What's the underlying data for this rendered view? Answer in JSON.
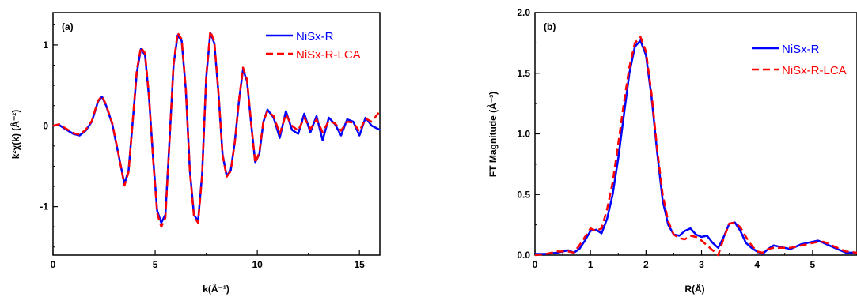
{
  "chart_data": [
    {
      "panel": "(a)",
      "type": "line",
      "xlabel": "k(Å⁻¹)",
      "ylabel": "k²χ(k) (Å⁻²)",
      "xlim": [
        0,
        16
      ],
      "ylim": [
        -1.6,
        1.4
      ],
      "xticks": [
        "0",
        "5",
        "10",
        "15"
      ],
      "yticks": [
        "-1",
        "0",
        "1"
      ],
      "legend_position": "top-right",
      "series": [
        {
          "name": "NiSx-R",
          "color": "#0000ff",
          "style": "solid",
          "x": [
            0,
            0.3,
            0.6,
            1.0,
            1.3,
            1.6,
            1.9,
            2.2,
            2.4,
            2.6,
            2.9,
            3.2,
            3.5,
            3.7,
            3.9,
            4.1,
            4.3,
            4.5,
            4.7,
            4.9,
            5.1,
            5.3,
            5.5,
            5.7,
            5.9,
            6.1,
            6.3,
            6.5,
            6.7,
            6.9,
            7.1,
            7.3,
            7.5,
            7.7,
            7.9,
            8.1,
            8.3,
            8.5,
            8.7,
            8.9,
            9.1,
            9.3,
            9.5,
            9.7,
            9.9,
            10.1,
            10.3,
            10.5,
            10.8,
            11.1,
            11.4,
            11.7,
            12.0,
            12.3,
            12.6,
            12.9,
            13.2,
            13.5,
            13.8,
            14.1,
            14.4,
            14.7,
            15.0,
            15.3,
            15.6,
            16.0
          ],
          "y": [
            0.0,
            0.01,
            -0.04,
            -0.1,
            -0.12,
            -0.06,
            0.05,
            0.3,
            0.36,
            0.25,
            0.02,
            -0.35,
            -0.72,
            -0.55,
            0.05,
            0.65,
            0.95,
            0.88,
            0.35,
            -0.4,
            -1.05,
            -1.2,
            -1.1,
            -0.2,
            0.75,
            1.12,
            1.05,
            0.45,
            -0.55,
            -1.1,
            -1.18,
            -0.6,
            0.6,
            1.15,
            1.02,
            0.4,
            -0.35,
            -0.62,
            -0.55,
            -0.2,
            0.3,
            0.7,
            0.55,
            0.02,
            -0.45,
            -0.35,
            0.05,
            0.2,
            0.1,
            -0.15,
            0.18,
            -0.05,
            -0.1,
            0.15,
            -0.08,
            0.12,
            -0.18,
            0.1,
            0.02,
            -0.12,
            0.08,
            0.05,
            -0.12,
            0.1,
            0.0,
            -0.05
          ]
        },
        {
          "name": "NiSx-R-LCA",
          "color": "#ff0000",
          "style": "dashed",
          "x": [
            0,
            0.3,
            0.6,
            1.0,
            1.3,
            1.6,
            1.9,
            2.2,
            2.4,
            2.6,
            2.9,
            3.2,
            3.5,
            3.7,
            3.9,
            4.1,
            4.3,
            4.5,
            4.7,
            4.9,
            5.1,
            5.3,
            5.5,
            5.7,
            5.9,
            6.1,
            6.3,
            6.5,
            6.7,
            6.9,
            7.1,
            7.3,
            7.5,
            7.7,
            7.9,
            8.1,
            8.3,
            8.5,
            8.7,
            8.9,
            9.1,
            9.3,
            9.5,
            9.7,
            9.9,
            10.1,
            10.3,
            10.5,
            10.8,
            11.1,
            11.4,
            11.7,
            12.0,
            12.3,
            12.6,
            12.9,
            13.2,
            13.5,
            13.8,
            14.1,
            14.4,
            14.7,
            15.0,
            15.3,
            15.6,
            16.0
          ],
          "y": [
            0.0,
            0.02,
            -0.03,
            -0.09,
            -0.11,
            -0.05,
            0.06,
            0.31,
            0.37,
            0.26,
            0.03,
            -0.34,
            -0.74,
            -0.57,
            0.06,
            0.68,
            0.97,
            0.9,
            0.37,
            -0.42,
            -1.08,
            -1.25,
            -1.14,
            -0.22,
            0.77,
            1.15,
            1.07,
            0.46,
            -0.56,
            -1.12,
            -1.2,
            -0.62,
            0.62,
            1.17,
            1.04,
            0.41,
            -0.36,
            -0.63,
            -0.56,
            -0.21,
            0.31,
            0.72,
            0.57,
            0.03,
            -0.46,
            -0.33,
            0.06,
            0.18,
            0.12,
            -0.1,
            0.14,
            0.0,
            -0.06,
            0.1,
            -0.04,
            0.08,
            -0.08,
            0.06,
            0.03,
            -0.06,
            0.05,
            0.04,
            -0.07,
            0.09,
            0.05,
            0.18
          ]
        }
      ]
    },
    {
      "panel": "(b)",
      "type": "line",
      "xlabel": "R(Å)",
      "ylabel": "FT Magnitude (Å⁻³)",
      "xlim": [
        0,
        5.8
      ],
      "ylim": [
        0,
        2.0
      ],
      "xticks": [
        "0",
        "1",
        "2",
        "3",
        "4",
        "5"
      ],
      "yticks": [
        "0.0",
        "0.5",
        "1.0",
        "1.5",
        "2.0"
      ],
      "legend_position": "top-right",
      "series": [
        {
          "name": "NiSx-R",
          "color": "#0000ff",
          "style": "solid",
          "x": [
            0,
            0.2,
            0.4,
            0.6,
            0.7,
            0.8,
            0.9,
            1.0,
            1.1,
            1.2,
            1.3,
            1.4,
            1.5,
            1.6,
            1.7,
            1.8,
            1.9,
            2.0,
            2.1,
            2.2,
            2.3,
            2.4,
            2.5,
            2.6,
            2.7,
            2.8,
            2.9,
            3.0,
            3.1,
            3.2,
            3.3,
            3.4,
            3.5,
            3.6,
            3.7,
            3.8,
            3.9,
            4.0,
            4.1,
            4.2,
            4.3,
            4.4,
            4.6,
            4.8,
            5.0,
            5.1,
            5.2,
            5.4,
            5.6,
            5.8
          ],
          "y": [
            0.01,
            0.01,
            0.02,
            0.04,
            0.02,
            0.05,
            0.12,
            0.2,
            0.21,
            0.18,
            0.3,
            0.5,
            0.8,
            1.15,
            1.5,
            1.72,
            1.77,
            1.65,
            1.3,
            0.85,
            0.45,
            0.25,
            0.17,
            0.16,
            0.2,
            0.22,
            0.17,
            0.15,
            0.16,
            0.1,
            0.06,
            0.15,
            0.26,
            0.27,
            0.2,
            0.1,
            0.06,
            0.03,
            0.01,
            0.05,
            0.08,
            0.07,
            0.05,
            0.09,
            0.11,
            0.12,
            0.1,
            0.06,
            0.02,
            0.02
          ]
        },
        {
          "name": "NiSx-R-LCA",
          "color": "#ff0000",
          "style": "dashed",
          "x": [
            0,
            0.2,
            0.4,
            0.6,
            0.7,
            0.8,
            0.9,
            1.0,
            1.1,
            1.2,
            1.3,
            1.4,
            1.5,
            1.6,
            1.7,
            1.8,
            1.9,
            2.0,
            2.1,
            2.2,
            2.3,
            2.4,
            2.5,
            2.6,
            2.7,
            2.8,
            2.9,
            3.0,
            3.1,
            3.2,
            3.3,
            3.4,
            3.5,
            3.6,
            3.7,
            3.8,
            3.9,
            4.0,
            4.1,
            4.2,
            4.3,
            4.4,
            4.6,
            4.8,
            5.0,
            5.1,
            5.2,
            5.4,
            5.6,
            5.8
          ],
          "y": [
            0.0,
            0.01,
            0.03,
            0.03,
            0.02,
            0.08,
            0.15,
            0.22,
            0.2,
            0.22,
            0.38,
            0.6,
            0.92,
            1.25,
            1.55,
            1.75,
            1.8,
            1.68,
            1.33,
            0.88,
            0.5,
            0.28,
            0.17,
            0.14,
            0.13,
            0.16,
            0.15,
            0.12,
            0.08,
            0.04,
            0.0,
            0.14,
            0.26,
            0.27,
            0.23,
            0.15,
            0.08,
            0.03,
            0.02,
            0.05,
            0.06,
            0.06,
            0.06,
            0.08,
            0.1,
            0.11,
            0.11,
            0.07,
            0.03,
            0.02
          ]
        }
      ]
    }
  ]
}
